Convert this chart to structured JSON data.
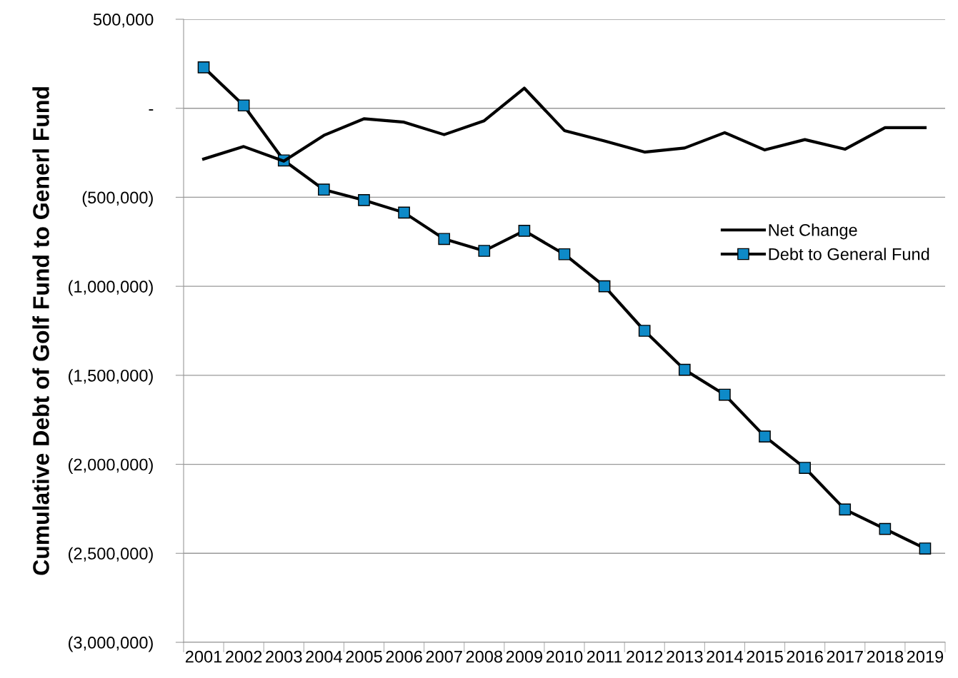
{
  "chart_data": {
    "type": "line",
    "ylabel": "Cumulative Debt of Golf Fund to Generl Fund",
    "categories": [
      "2001",
      "2002",
      "2003",
      "2004",
      "2005",
      "2006",
      "2007",
      "2008",
      "2009",
      "2010",
      "2011",
      "2012",
      "2013",
      "2014",
      "2015",
      "2016",
      "2017",
      "2018",
      "2019"
    ],
    "series": [
      {
        "name": "Net Change",
        "color": "#000000",
        "marker": "none",
        "values": [
          -285000,
          -215000,
          -297000,
          -152000,
          -59000,
          -78000,
          -148000,
          -70000,
          113000,
          -125000,
          -184000,
          -246000,
          -223000,
          -137000,
          -234000,
          -176000,
          -230000,
          -109000,
          -109000
        ]
      },
      {
        "name": "Debt to General Fund",
        "color": "#0e8ac8",
        "marker": "square",
        "values": [
          230000,
          16000,
          -293000,
          -457000,
          -516000,
          -586000,
          -734000,
          -801000,
          -688000,
          -820000,
          -1000000,
          -1250000,
          -1469000,
          -1609000,
          -1844000,
          -2020000,
          -2254000,
          -2363000,
          -2473000
        ]
      }
    ],
    "ylim": [
      -3000000,
      500000
    ],
    "yticks": [
      {
        "value": 500000,
        "label": "500,000"
      },
      {
        "value": 0,
        "label": "-"
      },
      {
        "value": -500000,
        "label": "(500,000)"
      },
      {
        "value": -1000000,
        "label": "(1,000,000)"
      },
      {
        "value": -1500000,
        "label": "(1,500,000)"
      },
      {
        "value": -2000000,
        "label": "(2,000,000)"
      },
      {
        "value": -2500000,
        "label": "(2,500,000)"
      },
      {
        "value": -3000000,
        "label": "(3,000,000)"
      }
    ],
    "grid": "y",
    "legend": "right"
  }
}
